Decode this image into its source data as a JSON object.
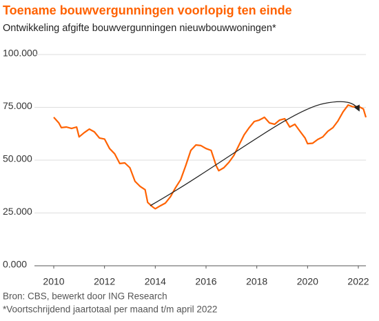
{
  "chart_data": {
    "type": "line",
    "title": "Toename bouwvergunningen voorlopig ten einde",
    "subtitle": "Ontwikkeling afgifte bouwvergunningen nieuwbouwwoningen*",
    "source": "Bron: CBS, bewerkt door ING Research",
    "note": "*Voortschrijdend jaartotaal per maand t/m april 2022",
    "color": "#ff6200",
    "x": [
      2010.0,
      2010.2,
      2010.3,
      2010.5,
      2010.7,
      2010.9,
      2011.0,
      2011.2,
      2011.4,
      2011.6,
      2011.8,
      2012.0,
      2012.2,
      2012.4,
      2012.6,
      2012.8,
      2013.0,
      2013.2,
      2013.4,
      2013.6,
      2013.7,
      2013.9,
      2014.0,
      2014.2,
      2014.4,
      2014.6,
      2014.8,
      2015.0,
      2015.2,
      2015.4,
      2015.6,
      2015.8,
      2016.0,
      2016.2,
      2016.4,
      2016.5,
      2016.7,
      2016.9,
      2017.1,
      2017.3,
      2017.5,
      2017.7,
      2017.9,
      2018.1,
      2018.3,
      2018.5,
      2018.7,
      2018.9,
      2019.1,
      2019.3,
      2019.5,
      2019.7,
      2019.9,
      2020.0,
      2020.2,
      2020.4,
      2020.6,
      2020.8,
      2021.0,
      2021.2,
      2021.4,
      2021.6,
      2021.8,
      2022.0,
      2022.2,
      2022.3
    ],
    "values": [
      70300,
      67600,
      65400,
      65700,
      65000,
      65700,
      61000,
      63000,
      64700,
      63400,
      60500,
      60000,
      55500,
      53000,
      48400,
      48700,
      46400,
      40000,
      37600,
      36000,
      30000,
      27800,
      27000,
      28400,
      29700,
      32700,
      37000,
      40800,
      47400,
      54600,
      57200,
      56900,
      55500,
      54600,
      47400,
      45000,
      46400,
      49000,
      52300,
      57200,
      62000,
      65400,
      68300,
      69000,
      70300,
      67600,
      67000,
      69000,
      69600,
      65700,
      67000,
      63700,
      60500,
      57800,
      58000,
      59800,
      61000,
      63700,
      65400,
      68600,
      72900,
      76100,
      75200,
      75500,
      74200,
      70300
    ],
    "xlim": [
      2010,
      2022.3
    ],
    "xticks": [
      2010,
      2012,
      2014,
      2016,
      2018,
      2020,
      2022
    ],
    "ylim": [
      0,
      100000
    ],
    "yticks": [
      {
        "value": 0,
        "label": "0.000"
      },
      {
        "value": 25000,
        "label": "25.000"
      },
      {
        "value": 50000,
        "label": "50.000"
      },
      {
        "value": 75000,
        "label": "75.000"
      },
      {
        "value": 100000,
        "label": "100.000"
      }
    ],
    "grid": true
  }
}
